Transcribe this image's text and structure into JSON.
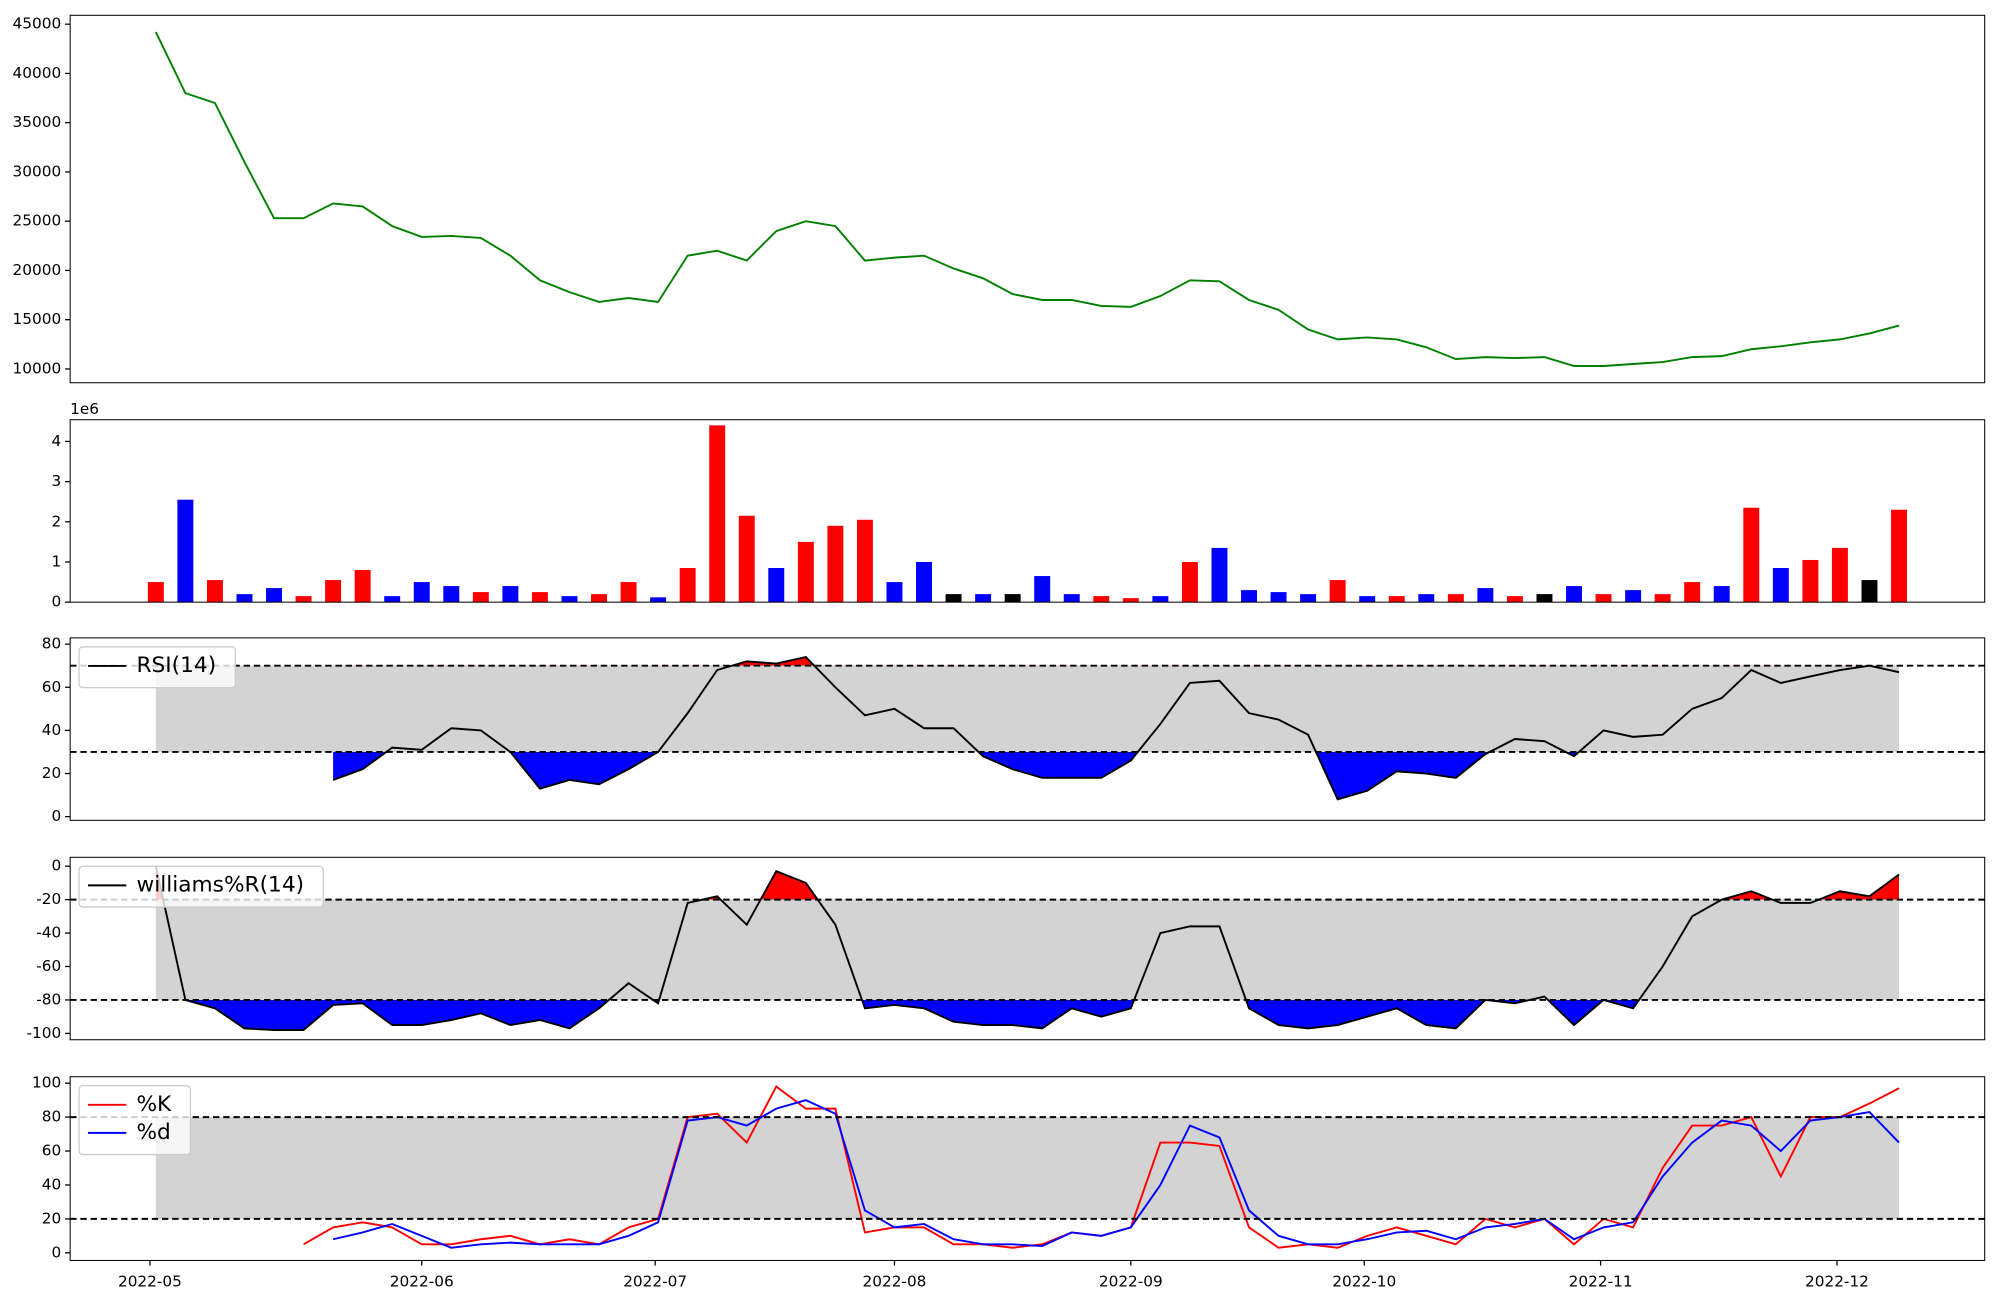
{
  "chart_data": [
    {
      "type": "line",
      "xlim": [
        -2.9,
        61.9
      ],
      "ylim": [
        8600,
        45900
      ],
      "yticks": [
        10000,
        15000,
        20000,
        25000,
        30000,
        35000,
        40000,
        45000
      ],
      "series": [
        {
          "color": "#008000",
          "values": [
            44200,
            38000,
            37000,
            31000,
            25300,
            25300,
            26800,
            26500,
            24500,
            23400,
            23500,
            23300,
            21500,
            19000,
            17800,
            16800,
            17200,
            16800,
            21500,
            22000,
            21000,
            24000,
            25000,
            24500,
            21000,
            21300,
            21500,
            20200,
            19200,
            17600,
            17000,
            17000,
            16400,
            16300,
            17400,
            19000,
            18900,
            17000,
            16000,
            14000,
            13000,
            13200,
            13000,
            12200,
            11000,
            11200,
            11100,
            11200,
            10300,
            10300,
            10500,
            10700,
            11200,
            11300,
            12000,
            12300,
            12700,
            13000,
            13600,
            14400
          ]
        }
      ]
    },
    {
      "type": "bar",
      "xlim": [
        -2.9,
        61.9
      ],
      "ylim": [
        0,
        4.54
      ],
      "yticks": [
        0,
        1,
        2,
        3,
        4
      ],
      "y_offset_label": "1e6",
      "values": [
        0.5,
        2.55,
        0.55,
        0.2,
        0.35,
        0.15,
        0.55,
        0.8,
        0.15,
        0.5,
        0.4,
        0.25,
        0.4,
        0.25,
        0.15,
        0.2,
        0.5,
        0.12,
        0.85,
        4.4,
        2.15,
        0.85,
        1.5,
        1.9,
        2.05,
        0.5,
        1.0,
        0.2,
        0.2,
        0.2,
        0.65,
        0.2,
        0.15,
        0.1,
        0.15,
        1.0,
        1.35,
        0.3,
        0.25,
        0.2,
        0.55,
        0.15,
        0.15,
        0.2,
        0.2,
        0.35,
        0.15,
        0.2,
        0.4,
        0.2,
        0.3,
        0.2,
        0.5,
        0.4,
        2.35,
        0.85,
        1.05,
        1.35,
        0.55,
        2.3
      ],
      "colors": [
        "red",
        "blue",
        "red",
        "blue",
        "blue",
        "red",
        "red",
        "red",
        "blue",
        "blue",
        "blue",
        "red",
        "blue",
        "red",
        "blue",
        "red",
        "red",
        "blue",
        "red",
        "red",
        "red",
        "blue",
        "red",
        "red",
        "red",
        "blue",
        "blue",
        "black",
        "blue",
        "black",
        "blue",
        "blue",
        "red",
        "red",
        "blue",
        "red",
        "blue",
        "blue",
        "blue",
        "blue",
        "red",
        "blue",
        "red",
        "blue",
        "red",
        "blue",
        "red",
        "black",
        "blue",
        "red",
        "blue",
        "red",
        "red",
        "blue",
        "red",
        "blue",
        "red",
        "red",
        "black",
        "red"
      ]
    },
    {
      "type": "line",
      "xlim": [
        -2.9,
        61.9
      ],
      "ylim": [
        -1.7,
        82.9
      ],
      "yticks": [
        0,
        20,
        40,
        60,
        80
      ],
      "levels": [
        30,
        70
      ],
      "band_color": "lightgray",
      "fill_colors": [
        "blue",
        "red"
      ],
      "legend": "upper left",
      "series": [
        {
          "name": "RSI(14)",
          "color": "black",
          "values": [
            null,
            null,
            null,
            null,
            null,
            null,
            17,
            22,
            32,
            31,
            41,
            40,
            30,
            13,
            17,
            15,
            22,
            30,
            48,
            68,
            72,
            71,
            74,
            60,
            47,
            50,
            41,
            41,
            28,
            22,
            18,
            18,
            18,
            26,
            43,
            62,
            63,
            48,
            45,
            38,
            8,
            12,
            21,
            20,
            18,
            29,
            36,
            35,
            28,
            40,
            37,
            38,
            50,
            55,
            68,
            62,
            65,
            68,
            70,
            67
          ]
        }
      ]
    },
    {
      "type": "line",
      "xlim": [
        -2.9,
        61.9
      ],
      "ylim": [
        -103.8,
        5.3
      ],
      "yticks": [
        -100,
        -80,
        -60,
        -40,
        -20,
        0
      ],
      "levels": [
        -80,
        -20
      ],
      "band_color": "lightgray",
      "fill_colors": [
        "blue",
        "red"
      ],
      "legend": "upper left",
      "series": [
        {
          "name": "williams%R(14)",
          "color": "black",
          "values": [
            0,
            -80,
            -85,
            -97,
            -98,
            -98,
            -83,
            -82,
            -95,
            -95,
            -92,
            -88,
            -95,
            -92,
            -97,
            -85,
            -70,
            -82,
            -22,
            -18,
            -35,
            -3,
            -10,
            -35,
            -85,
            -83,
            -85,
            -93,
            -95,
            -95,
            -97,
            -85,
            -90,
            -85,
            -40,
            -36,
            -36,
            -85,
            -95,
            -97,
            -95,
            -90,
            -85,
            -95,
            -97,
            -80,
            -82,
            -78,
            -95,
            -80,
            -85,
            -60,
            -30,
            -20,
            -15,
            -22,
            -22,
            -15,
            -18,
            -5
          ]
        }
      ]
    },
    {
      "type": "line",
      "xlim": [
        -2.9,
        61.9
      ],
      "ylim": [
        -4.5,
        103.8
      ],
      "yticks": [
        0,
        20,
        40,
        60,
        80,
        100
      ],
      "levels": [
        20,
        80
      ],
      "band_color": "lightgray",
      "legend": "upper left",
      "xticks": [
        {
          "value": -0.2,
          "label": "2022-05"
        },
        {
          "value": 9,
          "label": "2022-06"
        },
        {
          "value": 16.9,
          "label": "2022-07"
        },
        {
          "value": 25,
          "label": "2022-08"
        },
        {
          "value": 33,
          "label": "2022-09"
        },
        {
          "value": 40.9,
          "label": "2022-10"
        },
        {
          "value": 48.9,
          "label": "2022-11"
        },
        {
          "value": 56.9,
          "label": "2022-12"
        }
      ],
      "series": [
        {
          "name": "%K",
          "color": "red",
          "values": [
            null,
            null,
            null,
            null,
            null,
            5,
            15,
            18,
            15,
            5,
            5,
            8,
            10,
            5,
            8,
            5,
            15,
            20,
            80,
            82,
            65,
            98,
            85,
            85,
            12,
            15,
            15,
            5,
            5,
            3,
            5,
            12,
            10,
            15,
            65,
            65,
            63,
            15,
            3,
            5,
            3,
            10,
            15,
            10,
            5,
            20,
            15,
            20,
            5,
            20,
            15,
            50,
            75,
            75,
            80,
            45,
            80,
            80,
            88,
            97
          ]
        },
        {
          "name": "%d",
          "color": "blue",
          "values": [
            null,
            null,
            null,
            null,
            null,
            null,
            8,
            12,
            17,
            10,
            3,
            5,
            6,
            5,
            5,
            5,
            10,
            18,
            78,
            80,
            75,
            85,
            90,
            82,
            25,
            15,
            17,
            8,
            5,
            5,
            4,
            12,
            10,
            15,
            40,
            75,
            68,
            25,
            10,
            5,
            5,
            8,
            12,
            13,
            8,
            15,
            17,
            20,
            8,
            15,
            18,
            45,
            65,
            78,
            75,
            60,
            78,
            80,
            83,
            65
          ]
        }
      ]
    }
  ]
}
